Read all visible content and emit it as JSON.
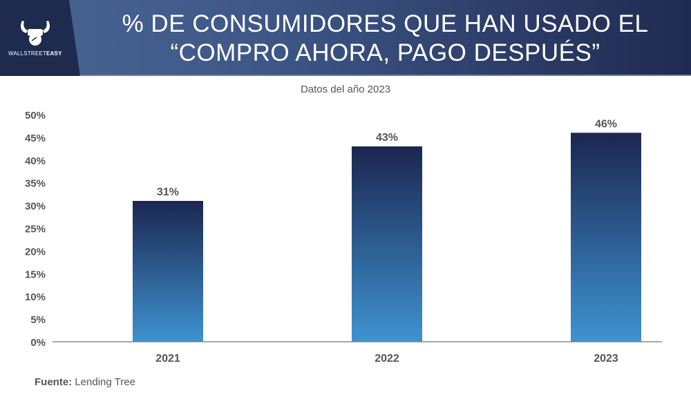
{
  "header": {
    "logo": {
      "icon": "bull-fist-icon",
      "brand_regular": "WALLSTREET",
      "brand_bold": "EASY"
    },
    "title_line1": "% DE CONSUMIDORES QUE HAN USADO EL",
    "title_line2": "“COMPRO AHORA, PAGO DESPUÉS”"
  },
  "colors": {
    "bar_top": "#1b2650",
    "bar_bottom": "#3e93d0",
    "text": "#555555",
    "axis": "#888888"
  },
  "chart_data": {
    "type": "bar",
    "title": "% DE CONSUMIDORES QUE HAN USADO EL “COMPRO AHORA, PAGO DESPUÉS”",
    "subtitle": "Datos del año 2023",
    "categories": [
      "2021",
      "2022",
      "2023"
    ],
    "values": [
      31,
      43,
      46
    ],
    "data_labels": [
      "31%",
      "43%",
      "46%"
    ],
    "xlabel": "",
    "ylabel": "",
    "ylim": [
      0,
      50
    ],
    "yticks": [
      0,
      5,
      10,
      15,
      20,
      25,
      30,
      35,
      40,
      45,
      50
    ],
    "ytick_labels": [
      "0%",
      "5%",
      "10%",
      "15%",
      "20%",
      "25%",
      "30%",
      "35%",
      "40%",
      "45%",
      "50%"
    ],
    "grid": false,
    "legend": "none"
  },
  "footer": {
    "source_label": "Fuente:",
    "source_value": "Lending Tree"
  }
}
